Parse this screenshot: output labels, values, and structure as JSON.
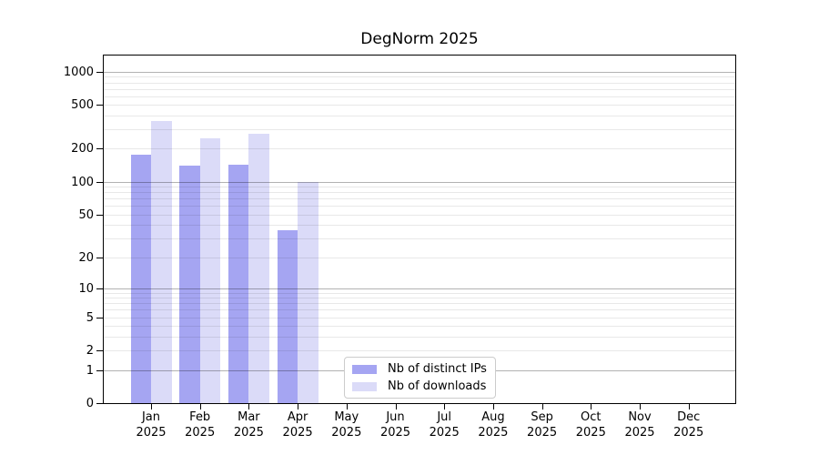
{
  "figure": {
    "title": "DegNorm 2025"
  },
  "colors": {
    "ips_bar": "#a5a5f2",
    "downloads_bar": "#dbdbf8",
    "major_grid": "rgba(0,0,0,0.30)",
    "minor_grid": "rgba(0,0,0,0.09)",
    "axis": "#000000",
    "legend_border": "#cccccc"
  },
  "y_axis": {
    "tick_values": [
      1000,
      500,
      200,
      100,
      50,
      20,
      10,
      5,
      2,
      1,
      0
    ],
    "tick_labels": [
      "1000",
      "500",
      "200",
      "100",
      "50",
      "20",
      "10",
      "5",
      "2",
      "1",
      "0"
    ]
  },
  "x_axis": {
    "months": [
      "Jan",
      "Feb",
      "Mar",
      "Apr",
      "May",
      "Jun",
      "Jul",
      "Aug",
      "Sep",
      "Oct",
      "Nov",
      "Dec"
    ],
    "year_label": "2025"
  },
  "legend": {
    "items": [
      {
        "label": "Nb of distinct IPs",
        "color_key": "ips_bar"
      },
      {
        "label": "Nb of downloads",
        "color_key": "downloads_bar"
      }
    ]
  },
  "chart_data": {
    "type": "bar",
    "title": "DegNorm 2025",
    "categories": [
      "Jan 2025",
      "Feb 2025",
      "Mar 2025",
      "Apr 2025",
      "May 2025",
      "Jun 2025",
      "Jul 2025",
      "Aug 2025",
      "Sep 2025",
      "Oct 2025",
      "Nov 2025",
      "Dec 2025"
    ],
    "series": [
      {
        "name": "Nb of distinct IPs",
        "color": "#a5a5f2",
        "values": [
          178,
          139,
          142,
          36,
          0,
          0,
          0,
          0,
          0,
          0,
          0,
          0
        ]
      },
      {
        "name": "Nb of downloads",
        "color": "#dbdbf8",
        "values": [
          358,
          250,
          271,
          100,
          0,
          0,
          0,
          0,
          0,
          0,
          0,
          0
        ]
      }
    ],
    "yscale": "log1p",
    "ylim": [
      0,
      1400
    ],
    "yticks": [
      0,
      1,
      2,
      5,
      10,
      20,
      50,
      100,
      200,
      500,
      1000
    ],
    "xlabel": "",
    "ylabel": "",
    "grid": "horizontal-behind-nothing (gridlines drawn over bars)",
    "legend_position": "inside-bottom-center"
  }
}
